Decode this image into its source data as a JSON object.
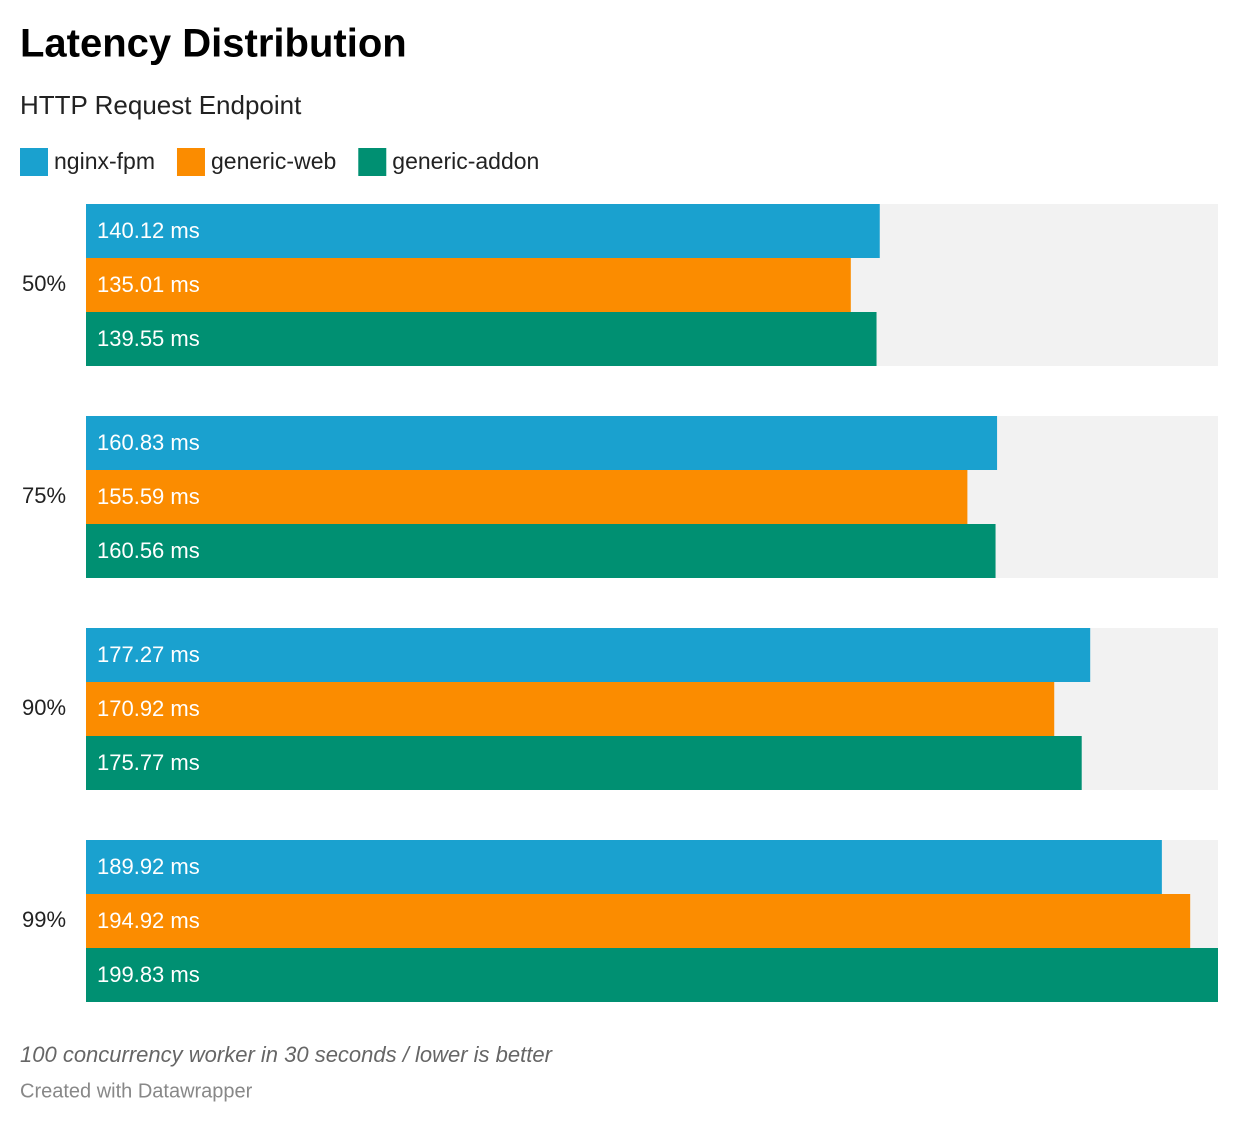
{
  "chart_data": {
    "type": "bar",
    "orientation": "horizontal",
    "title": "Latency Distribution",
    "subtitle": "HTTP Request Endpoint",
    "categories": [
      "50%",
      "75%",
      "90%",
      "99%"
    ],
    "series": [
      {
        "name": "nginx-fpm",
        "color": "#1aa1cf",
        "values": [
          140.12,
          160.83,
          177.27,
          189.92
        ],
        "value_labels": [
          "140.12 ms",
          "160.83 ms",
          "177.27 ms",
          "189.92 ms"
        ]
      },
      {
        "name": "generic-web",
        "color": "#fb8c00",
        "values": [
          135.01,
          155.59,
          170.92,
          194.92
        ],
        "value_labels": [
          "135.01 ms",
          "155.59 ms",
          "170.92 ms",
          "194.92 ms"
        ]
      },
      {
        "name": "generic-addon",
        "color": "#009072",
        "values": [
          139.55,
          160.56,
          175.77,
          199.83
        ],
        "value_labels": [
          "139.55 ms",
          "160.56 ms",
          "175.77 ms",
          "199.83 ms"
        ]
      }
    ],
    "xlim": [
      0,
      199.83
    ],
    "background_color": "#f2f2f2",
    "notes": "100 concurrency worker in 30 seconds / lower is better",
    "credit": "Created with Datawrapper"
  }
}
